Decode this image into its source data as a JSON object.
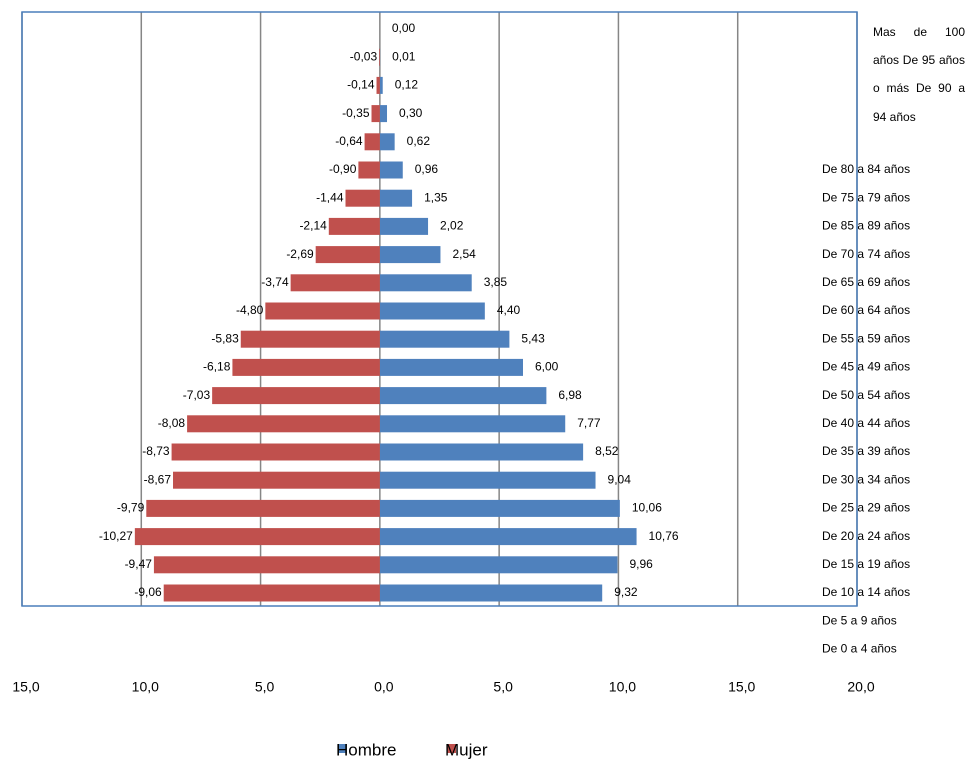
{
  "chart_data": {
    "type": "pyramid",
    "categories": [
      "Mas de 100 años",
      "De 95 años o más",
      "De 90 a 94 años",
      "De 80 a 84 años",
      "De 75 a 79 años",
      "De 85 a 89 años",
      "De 70 a 74 años",
      "De 65 a 69 años",
      "De 60 a 64 años",
      "De 55 a 59 años",
      "De 45 a 49 años",
      "De 50 a 54 años",
      "De 40 a 44 años",
      "De 35 a 39 años",
      "De 30 a 34 años",
      "De 25 a 29 años",
      "De 20 a 24 años",
      "De 15 a 19 años",
      "De 10 a 14 años",
      "De 5 a 9 años",
      "De 0 a 4 años"
    ],
    "series": [
      {
        "name": "Hombre",
        "color": "#4f81bd",
        "values": [
          0.0,
          0.01,
          0.12,
          0.3,
          0.62,
          0.96,
          1.35,
          2.02,
          2.54,
          3.85,
          4.4,
          5.43,
          6.0,
          6.98,
          7.77,
          8.52,
          9.04,
          10.06,
          10.76,
          9.96,
          9.32
        ],
        "value_labels": [
          "0,00",
          "0,01",
          "0,12",
          "0,30",
          "0,62",
          "0,96",
          "1,35",
          "2,02",
          "2,54",
          "3,85",
          "4,40",
          "5,43",
          "6,00",
          "6,98",
          "7,77",
          "8,52",
          "9,04",
          "10,06",
          "10,76",
          "9,96",
          "9,32"
        ]
      },
      {
        "name": "Mujer",
        "color": "#c0504d",
        "values": [
          null,
          -0.03,
          -0.14,
          -0.35,
          -0.64,
          -0.9,
          -1.44,
          -2.14,
          -2.69,
          -3.74,
          -4.8,
          -5.83,
          -6.18,
          -7.03,
          -8.08,
          -8.73,
          -8.67,
          -9.79,
          -10.27,
          -9.47,
          -9.06
        ],
        "value_labels": [
          null,
          "-0,03",
          "-0,14",
          "-0,35",
          "-0,64",
          "-0,90",
          "-1,44",
          "-2,14",
          "-2,69",
          "-3,74",
          "-4,80",
          "-5,83",
          "-6,18",
          "-7,03",
          "-8,08",
          "-8,73",
          "-8,67",
          "-9,79",
          "-10,27",
          "-9,47",
          "-9,06"
        ]
      }
    ],
    "xlim": [
      -15,
      20
    ],
    "xticks": [
      {
        "value": -15,
        "label": "15,0"
      },
      {
        "value": -10,
        "label": "10,0"
      },
      {
        "value": -5,
        "label": "5,0"
      },
      {
        "value": 0,
        "label": "0,0"
      },
      {
        "value": 5,
        "label": "5,0"
      },
      {
        "value": 10,
        "label": "10,0"
      },
      {
        "value": 15,
        "label": "15,0"
      },
      {
        "value": 20,
        "label": "20,0"
      }
    ],
    "grid": true
  }
}
